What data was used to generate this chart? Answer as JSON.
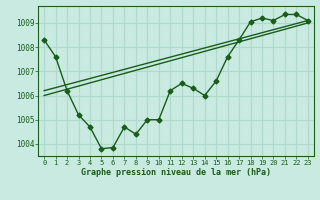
{
  "title": "Graphe pression niveau de la mer (hPa)",
  "bg_color": "#c8eae0",
  "grid_color": "#b0d8cc",
  "line_color": "#1a5c1a",
  "xlim": [
    -0.5,
    23.5
  ],
  "ylim": [
    1003.5,
    1009.7
  ],
  "yticks": [
    1004,
    1005,
    1006,
    1007,
    1008,
    1009
  ],
  "xticks": [
    0,
    1,
    2,
    3,
    4,
    5,
    6,
    7,
    8,
    9,
    10,
    11,
    12,
    13,
    14,
    15,
    16,
    17,
    18,
    19,
    20,
    21,
    22,
    23
  ],
  "series1_x": [
    0,
    1,
    2,
    3,
    4,
    5,
    6,
    7,
    8,
    9,
    10,
    11,
    12,
    13,
    14,
    15,
    16,
    17,
    18,
    19,
    20,
    21,
    22,
    23
  ],
  "series1_y": [
    1008.3,
    1007.6,
    1006.2,
    1005.2,
    1004.7,
    1003.8,
    1003.85,
    1004.7,
    1004.4,
    1005.0,
    1005.0,
    1006.2,
    1006.5,
    1006.3,
    1006.0,
    1006.6,
    1007.6,
    1008.3,
    1009.05,
    1009.2,
    1009.1,
    1009.35,
    1009.35,
    1009.1
  ],
  "series2_x": [
    0,
    23
  ],
  "series2_y": [
    1006.0,
    1009.0
  ],
  "series3_x": [
    0,
    23
  ],
  "series3_y": [
    1006.2,
    1009.1
  ]
}
